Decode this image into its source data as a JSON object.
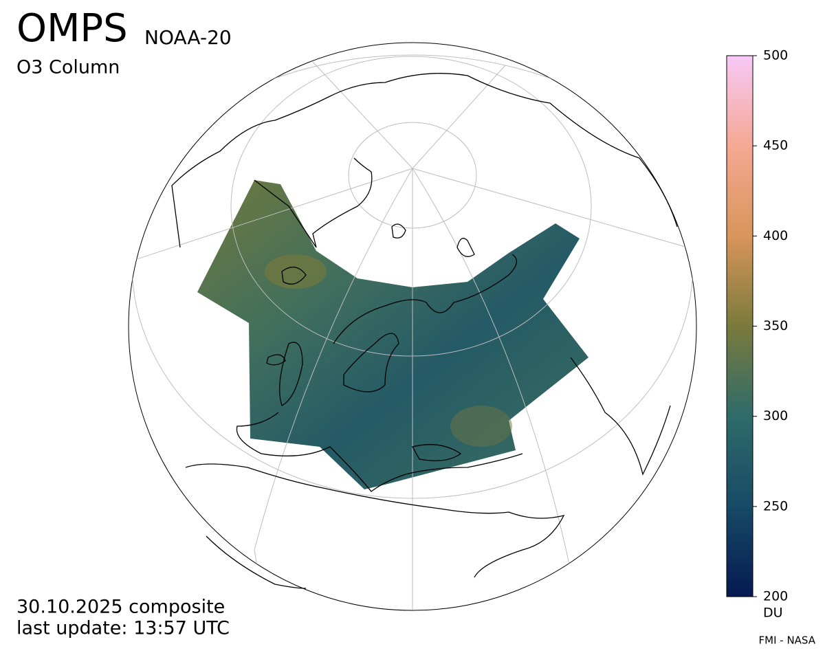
{
  "header": {
    "title": "OMPS",
    "satellite": "NOAA-20",
    "product": "O3 Column"
  },
  "footer": {
    "date": "30.10.2025 composite",
    "update": "last update: 13:57 UTC",
    "credit": "FMI - NASA"
  },
  "colorbar": {
    "lim": [
      200,
      500
    ],
    "ticks": [
      200,
      250,
      300,
      350,
      400,
      450,
      500
    ],
    "unit": "DU",
    "colors": [
      "#061a52",
      "#174a66",
      "#2e6b6a",
      "#7a7a3c",
      "#d9955a",
      "#f5a893",
      "#f7c9f7"
    ]
  }
}
